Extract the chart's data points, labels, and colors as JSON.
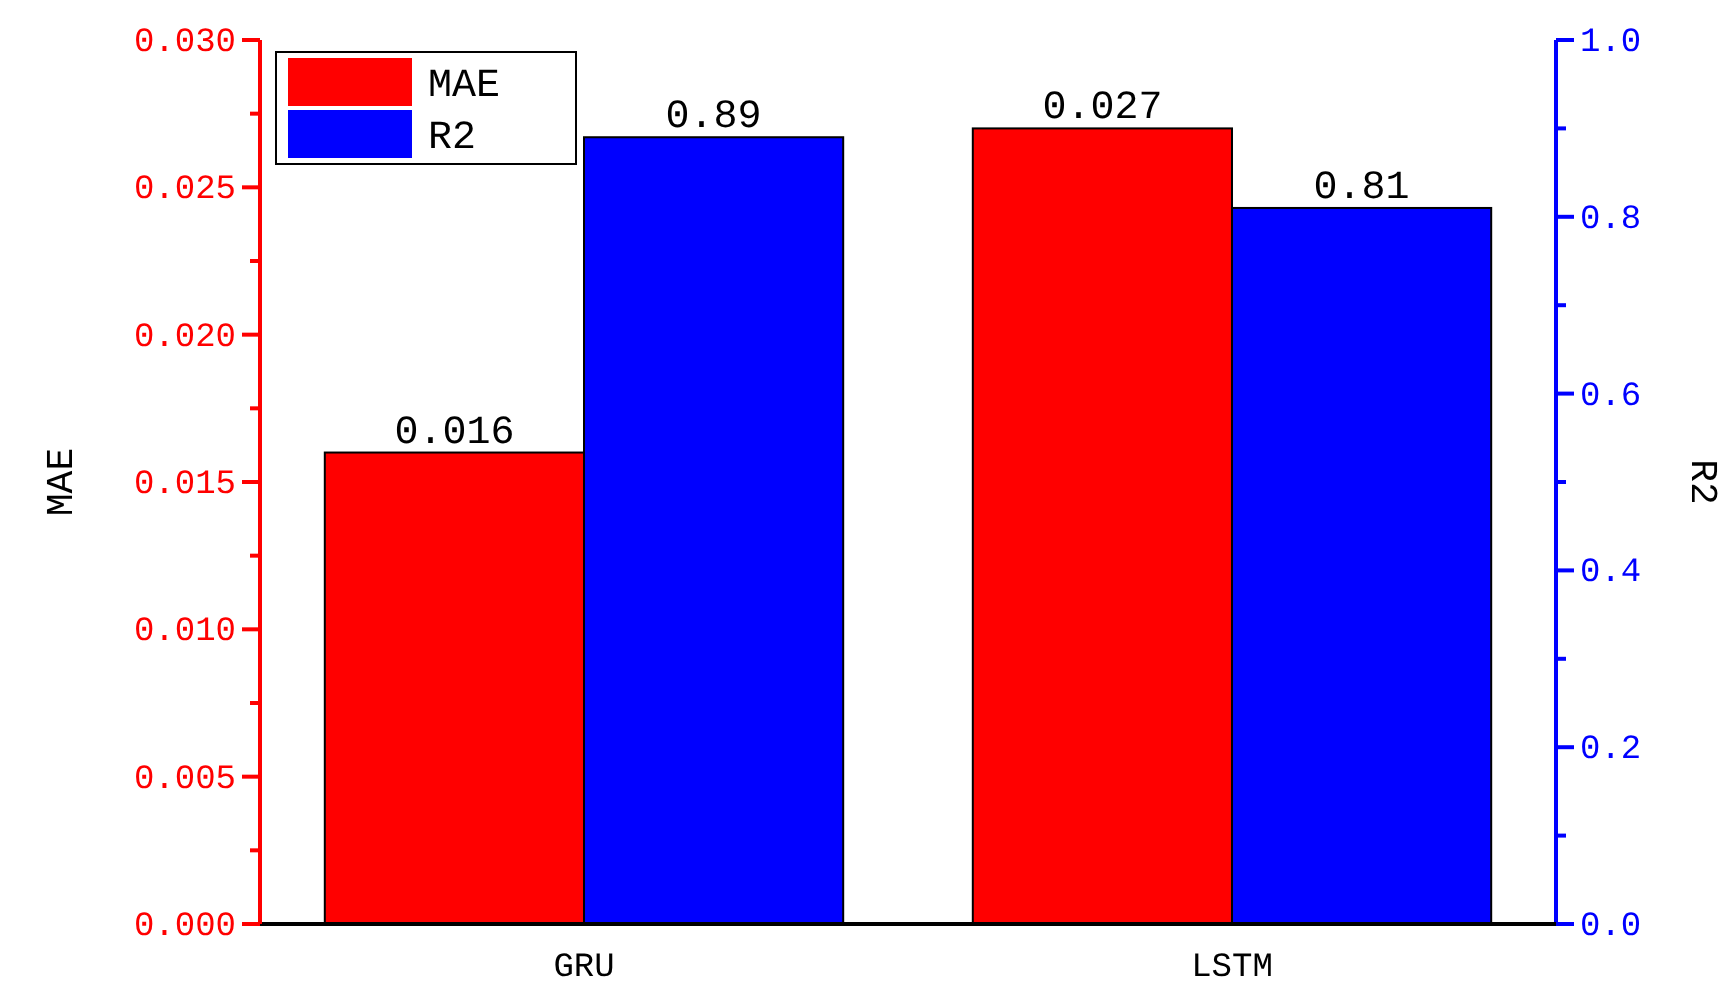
{
  "chart_data": {
    "type": "bar",
    "categories": [
      "GRU",
      "LSTM"
    ],
    "series": [
      {
        "name": "MAE",
        "color": "#ff0000",
        "values": [
          0.016,
          0.027
        ]
      },
      {
        "name": "R2",
        "color": "#0000ff",
        "values": [
          0.89,
          0.81
        ],
        "axis": "y2"
      }
    ],
    "ylabel": "MAE",
    "y2label": "R2",
    "ylim": [
      0,
      0.03
    ],
    "yticks": [
      {
        "value": 0,
        "label": "0.000"
      },
      {
        "value": 0.0025,
        "label": null
      },
      {
        "value": 0.005,
        "label": "0.005"
      },
      {
        "value": 0.0075,
        "label": null
      },
      {
        "value": 0.01,
        "label": "0.010"
      },
      {
        "value": 0.0125,
        "label": null
      },
      {
        "value": 0.015,
        "label": "0.015"
      },
      {
        "value": 0.0175,
        "label": null
      },
      {
        "value": 0.02,
        "label": "0.020"
      },
      {
        "value": 0.0225,
        "label": null
      },
      {
        "value": 0.025,
        "label": "0.025"
      },
      {
        "value": 0.0275,
        "label": null
      },
      {
        "value": 0.03,
        "label": "0.030"
      }
    ],
    "y2lim": [
      0,
      1
    ],
    "y2ticks": [
      {
        "value": 0,
        "label": "0.0"
      },
      {
        "value": 0.1,
        "label": null
      },
      {
        "value": 0.2,
        "label": "0.2"
      },
      {
        "value": 0.3,
        "label": null
      },
      {
        "value": 0.4,
        "label": "0.4"
      },
      {
        "value": 0.5,
        "label": null
      },
      {
        "value": 0.6,
        "label": "0.6"
      },
      {
        "value": 0.7,
        "label": null
      },
      {
        "value": 0.8,
        "label": "0.8"
      },
      {
        "value": 0.9,
        "label": null
      },
      {
        "value": 1,
        "label": "1.0"
      }
    ],
    "data_labels": true,
    "legend": "top left",
    "grid": false
  }
}
